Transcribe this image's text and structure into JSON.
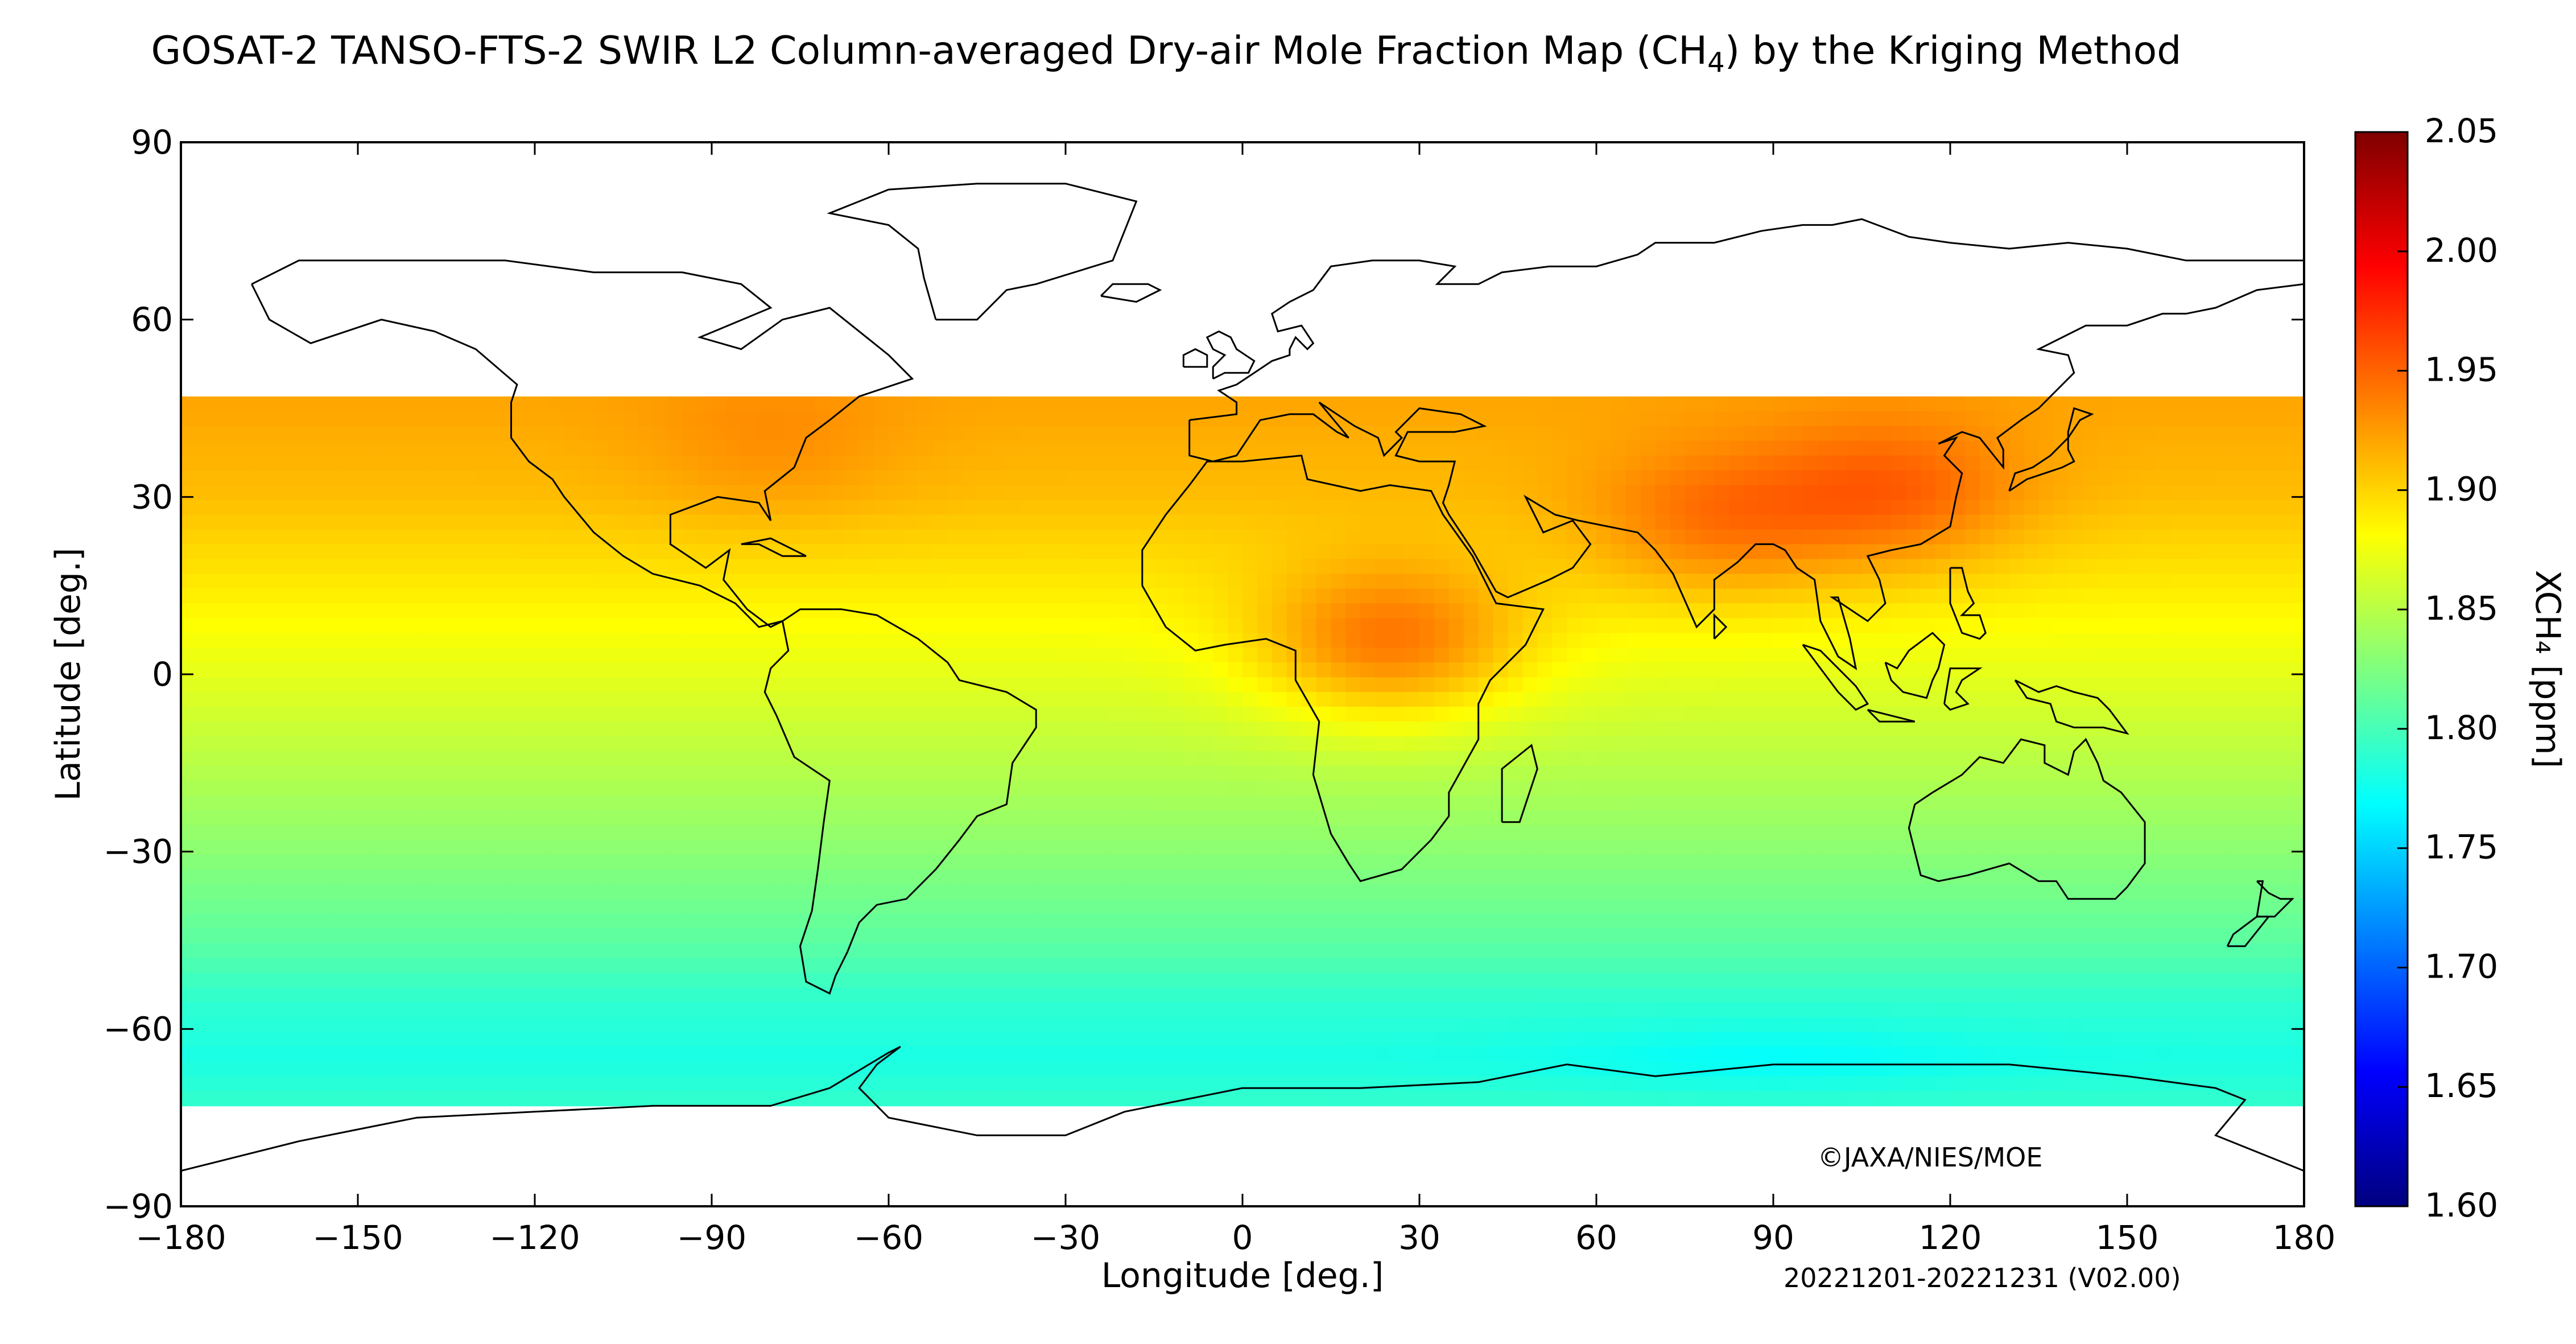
{
  "title": {
    "prefix": "GOSAT-2 TANSO-FTS-2 SWIR L2 Column-averaged Dry-air Mole Fraction Map (CH",
    "subscript": "4",
    "suffix": ") by the Kriging Method"
  },
  "map": {
    "xlabel": "Longitude [deg.]",
    "ylabel": "Latitude [deg.]",
    "xlim": [
      -180,
      180
    ],
    "ylim": [
      -90,
      90
    ],
    "xticks": [
      -180,
      -150,
      -120,
      -90,
      -60,
      -30,
      0,
      30,
      60,
      90,
      120,
      150,
      180
    ],
    "yticks": [
      90,
      60,
      30,
      0,
      -30,
      -60,
      -90
    ],
    "xtick_labels": [
      "−180",
      "−150",
      "−120",
      "−90",
      "−60",
      "−30",
      "0",
      "30",
      "60",
      "90",
      "120",
      "150",
      "180"
    ],
    "ytick_labels": [
      "90",
      "60",
      "30",
      "0",
      "−30",
      "−60",
      "−90"
    ],
    "copyright": "©JAXA/NIES/MOE",
    "period": "20221201-20221231 (V02.00)",
    "no_data_color": "#ffffff",
    "coastline_color": "#000000"
  },
  "colorbar": {
    "label": "XCH₄ [ppm]",
    "min": 1.6,
    "max": 2.05,
    "ticks": [
      "2.05",
      "2.00",
      "1.95",
      "1.90",
      "1.85",
      "1.80",
      "1.75",
      "1.70",
      "1.65",
      "1.60"
    ],
    "colormap": [
      "#00007f",
      "#0000ff",
      "#007fff",
      "#00ffff",
      "#7fff7f",
      "#ffff00",
      "#ff7f00",
      "#ff0000",
      "#7f0000"
    ]
  },
  "chart_data": {
    "type": "heatmap",
    "variable": "XCH4",
    "units": "ppm",
    "lat_coverage": [
      -72,
      47
    ],
    "zonal_profile": {
      "lat": [
        45,
        30,
        15,
        0,
        -15,
        -30,
        -45,
        -55,
        -65,
        -72
      ],
      "xch4": [
        1.92,
        1.91,
        1.89,
        1.87,
        1.85,
        1.83,
        1.81,
        1.79,
        1.78,
        1.79
      ]
    },
    "regional_maxima": [
      {
        "region": "East Asia",
        "lon": 110,
        "lat": 30,
        "xch4": 1.95
      },
      {
        "region": "Central Africa",
        "lon": 25,
        "lat": 5,
        "xch4": 1.94
      },
      {
        "region": "South Asia",
        "lon": 80,
        "lat": 25,
        "xch4": 1.94
      },
      {
        "region": "North America",
        "lon": -80,
        "lat": 38,
        "xch4": 1.93
      }
    ],
    "regional_minima": [
      {
        "region": "Southern Ocean",
        "lon": 90,
        "lat": -65,
        "xch4": 1.77
      }
    ]
  }
}
